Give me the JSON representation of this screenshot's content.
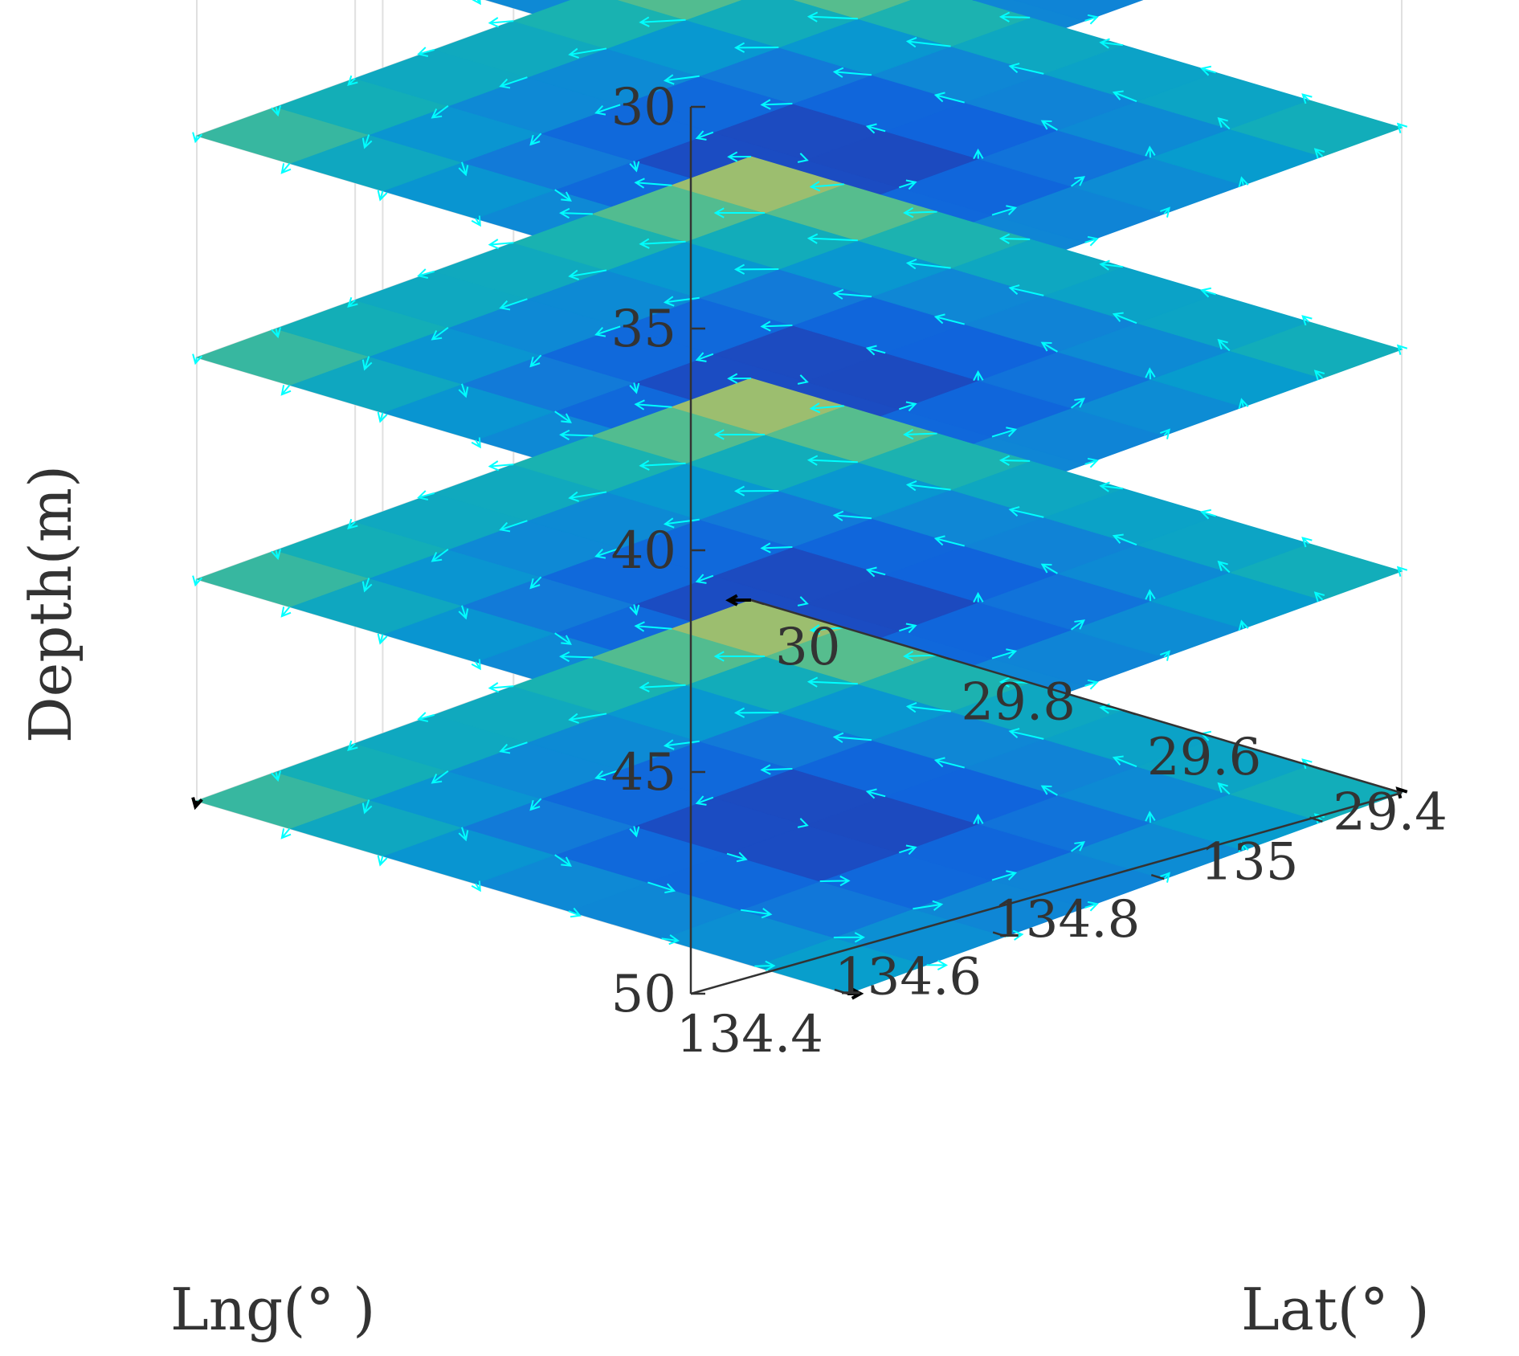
{
  "chart_data": {
    "type": "heatmap",
    "subtype": "3d-layered-slice-heatmap-with-current-vectors",
    "xlabel": "Lng(°  )",
    "ylabel": "Lat(°  )",
    "zlabel": "Depth(m)",
    "x_ticks": [
      "134.4",
      "134.6",
      "134.8",
      "135"
    ],
    "y_ticks": [
      "29.4",
      "29.6",
      "29.8",
      "30"
    ],
    "z_ticks": [
      "30",
      "35",
      "40",
      "45",
      "50"
    ],
    "xlim": [
      134.4,
      135.1
    ],
    "ylim": [
      29.3,
      30.0
    ],
    "zlim": [
      30,
      50
    ],
    "z_reversed": true,
    "grid": true,
    "colormap": "parula",
    "vector_color": "#00FFFF",
    "boundary_vector_color": "#000000",
    "layers": [
      {
        "depth": 30,
        "has_boundary_vectors": true
      },
      {
        "depth": 35,
        "has_boundary_vectors": false
      },
      {
        "depth": 40,
        "has_boundary_vectors": false
      },
      {
        "depth": 45,
        "has_boundary_vectors": false
      },
      {
        "depth": 50,
        "has_boundary_vectors": true
      }
    ],
    "grid_lng": [
      134.4,
      134.5,
      134.6,
      134.7,
      134.8,
      134.9,
      135.0,
      135.1
    ],
    "grid_lat": [
      29.3,
      29.4,
      29.5,
      29.6,
      29.7,
      29.8,
      29.9,
      30.0
    ],
    "field_values": [
      [
        0.47,
        0.4,
        0.36,
        0.34,
        0.35,
        0.4,
        0.47,
        0.55
      ],
      [
        0.4,
        0.3,
        0.24,
        0.21,
        0.22,
        0.28,
        0.38,
        0.5
      ],
      [
        0.36,
        0.24,
        0.13,
        0.09,
        0.12,
        0.22,
        0.34,
        0.48
      ],
      [
        0.35,
        0.22,
        0.08,
        0.03,
        0.07,
        0.2,
        0.34,
        0.5
      ],
      [
        0.38,
        0.25,
        0.13,
        0.09,
        0.13,
        0.24,
        0.38,
        0.55
      ],
      [
        0.45,
        0.33,
        0.24,
        0.22,
        0.25,
        0.34,
        0.48,
        0.64
      ],
      [
        0.55,
        0.45,
        0.38,
        0.36,
        0.39,
        0.47,
        0.6,
        0.74
      ],
      [
        0.66,
        0.58,
        0.53,
        0.52,
        0.55,
        0.62,
        0.74,
        0.86
      ]
    ]
  }
}
